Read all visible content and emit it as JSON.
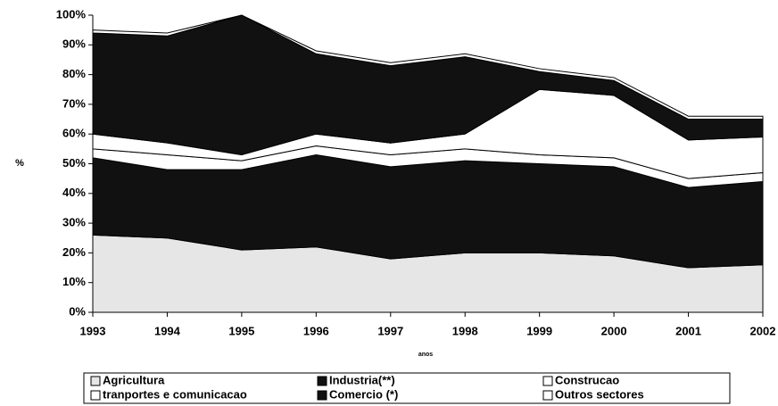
{
  "chart_data": {
    "type": "stacked_area",
    "x_label": "anos",
    "y_label": "%",
    "x": [
      1993,
      1994,
      1995,
      1996,
      1997,
      1998,
      1999,
      2000,
      2001,
      2002
    ],
    "xlim": [
      1993,
      2002
    ],
    "xticks": [
      1993,
      1994,
      1995,
      1996,
      1997,
      1998,
      1999,
      2000,
      2001,
      2002
    ],
    "ylim": [
      0,
      100
    ],
    "yticks": [
      {
        "value": 0,
        "label": "0%"
      },
      {
        "value": 10,
        "label": "10%"
      },
      {
        "value": 20,
        "label": "20%"
      },
      {
        "value": 30,
        "label": "30%"
      },
      {
        "value": 40,
        "label": "40%"
      },
      {
        "value": 50,
        "label": "50%"
      },
      {
        "value": 60,
        "label": "60%"
      },
      {
        "value": 70,
        "label": "70%"
      },
      {
        "value": 80,
        "label": "80%"
      },
      {
        "value": 90,
        "label": "90%"
      },
      {
        "value": 100,
        "label": "100%"
      }
    ],
    "series": [
      {
        "name": "Agricultura",
        "color": "#e6e6e6",
        "values": [
          26,
          25,
          21,
          22,
          18,
          20,
          20,
          19,
          15,
          16
        ]
      },
      {
        "name": "Industria(**)",
        "color": "#111111",
        "values": [
          26,
          23,
          27,
          31,
          31,
          31,
          30,
          30,
          27,
          28
        ]
      },
      {
        "name": "Construcao",
        "color": "#ffffff",
        "values": [
          3,
          5,
          3,
          3,
          4,
          4,
          3,
          3,
          3,
          3
        ]
      },
      {
        "name": "tranportes e comunicacao",
        "color": "#ffffff",
        "values": [
          5,
          4,
          2,
          4,
          4,
          5,
          22,
          21,
          13,
          12
        ]
      },
      {
        "name": "Comercio (*)",
        "color": "#111111",
        "values": [
          34,
          36,
          47,
          27,
          26,
          26,
          6,
          5,
          7,
          6
        ]
      },
      {
        "name": "Outros sectores",
        "color": "#ffffff",
        "values": [
          1,
          1,
          0,
          1,
          1,
          1,
          1,
          1,
          1,
          1
        ]
      }
    ]
  }
}
